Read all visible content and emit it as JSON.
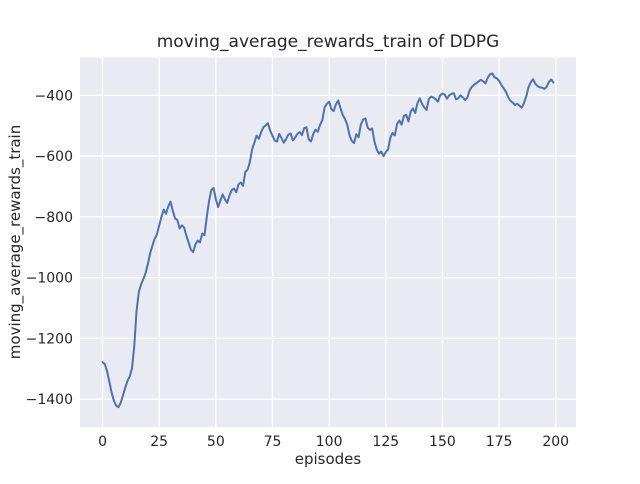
{
  "chart_data": {
    "type": "line",
    "title": "moving_average_rewards_train of DDPG",
    "xlabel": "episodes",
    "ylabel": "moving_average_rewards_train",
    "xticks": [
      0,
      25,
      50,
      75,
      100,
      125,
      150,
      175,
      200
    ],
    "yticks": [
      -400,
      -600,
      -800,
      -1000,
      -1200,
      -1400
    ],
    "xlim": [
      -9.95,
      208.95
    ],
    "ylim": [
      -1492,
      -276
    ],
    "grid": true,
    "legend_position": "none",
    "colors": {
      "line": "#4c72b0",
      "plot_background": "#eaeaf2",
      "grid": "#ffffff",
      "figure_background": "#ffffff",
      "text": "#262626"
    },
    "series": [
      {
        "name": "moving_average_rewards_train",
        "x_start": 0,
        "x_step": 1,
        "values": [
          -1278,
          -1284,
          -1308,
          -1342,
          -1378,
          -1405,
          -1421,
          -1426,
          -1412,
          -1388,
          -1362,
          -1340,
          -1325,
          -1298,
          -1225,
          -1110,
          -1048,
          -1022,
          -1005,
          -985,
          -955,
          -920,
          -895,
          -872,
          -858,
          -828,
          -800,
          -776,
          -790,
          -766,
          -750,
          -780,
          -805,
          -810,
          -838,
          -828,
          -835,
          -862,
          -885,
          -908,
          -916,
          -890,
          -878,
          -884,
          -855,
          -860,
          -800,
          -748,
          -712,
          -705,
          -742,
          -768,
          -746,
          -726,
          -742,
          -754,
          -730,
          -712,
          -707,
          -719,
          -693,
          -687,
          -698,
          -652,
          -645,
          -620,
          -578,
          -556,
          -533,
          -543,
          -521,
          -505,
          -499,
          -492,
          -517,
          -533,
          -549,
          -552,
          -527,
          -541,
          -556,
          -544,
          -529,
          -526,
          -548,
          -539,
          -527,
          -521,
          -531,
          -508,
          -505,
          -545,
          -552,
          -527,
          -513,
          -520,
          -497,
          -482,
          -440,
          -428,
          -421,
          -446,
          -452,
          -430,
          -417,
          -442,
          -465,
          -478,
          -497,
          -532,
          -550,
          -557,
          -528,
          -538,
          -496,
          -480,
          -476,
          -506,
          -514,
          -509,
          -552,
          -578,
          -592,
          -585,
          -600,
          -587,
          -578,
          -540,
          -524,
          -532,
          -494,
          -483,
          -497,
          -468,
          -464,
          -486,
          -454,
          -443,
          -458,
          -425,
          -410,
          -428,
          -440,
          -448,
          -412,
          -404,
          -407,
          -413,
          -421,
          -400,
          -394,
          -398,
          -411,
          -400,
          -395,
          -393,
          -413,
          -410,
          -400,
          -407,
          -416,
          -408,
          -384,
          -372,
          -365,
          -360,
          -354,
          -349,
          -354,
          -361,
          -342,
          -331,
          -328,
          -341,
          -344,
          -352,
          -366,
          -377,
          -388,
          -406,
          -418,
          -424,
          -432,
          -428,
          -434,
          -441,
          -425,
          -404,
          -373,
          -357,
          -347,
          -362,
          -370,
          -374,
          -375,
          -379,
          -372,
          -356,
          -348,
          -358
        ]
      }
    ]
  }
}
